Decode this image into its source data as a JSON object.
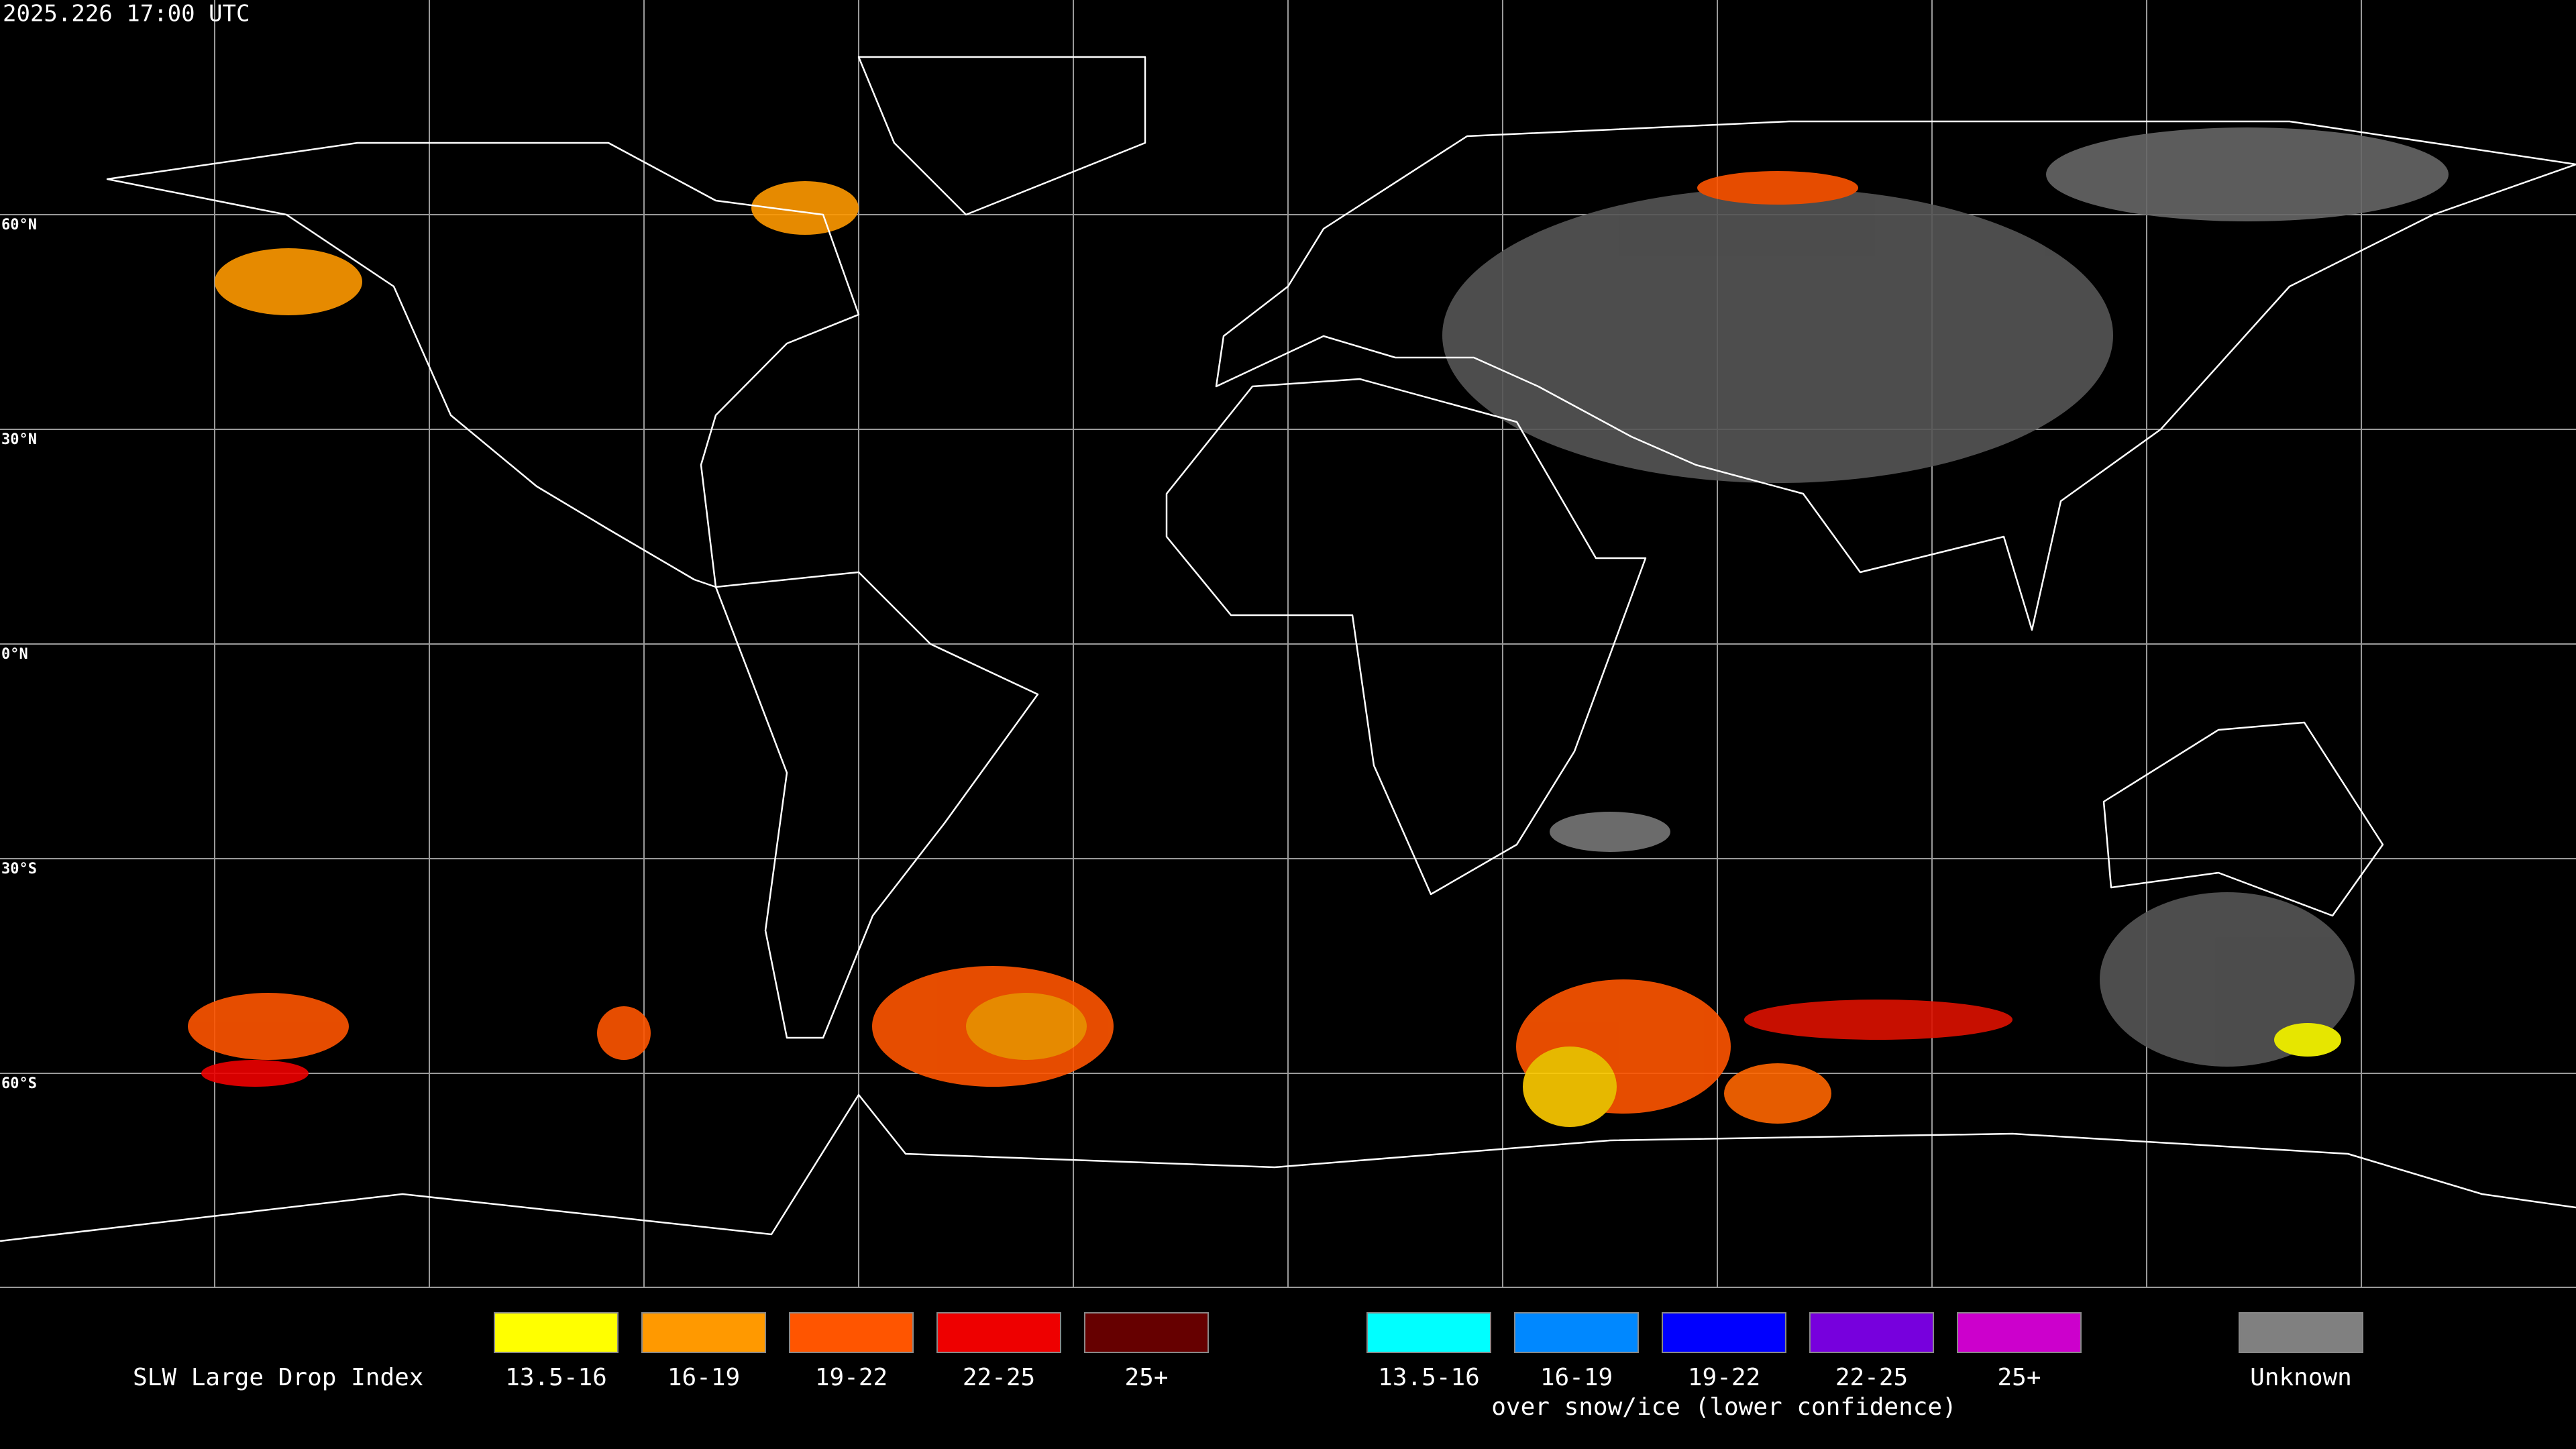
{
  "timestamp": "2025.226 17:00 UTC",
  "map": {
    "latitude_labels": [
      "60°N",
      "30°N",
      "0°N",
      "30°S",
      "60°S"
    ]
  },
  "legend": {
    "title": "SLW Large Drop Index",
    "groups": [
      {
        "items": [
          {
            "label": "13.5-16",
            "color": "#ffff00"
          },
          {
            "label": "16-19",
            "color": "#ff9900"
          },
          {
            "label": "19-22",
            "color": "#ff5500"
          },
          {
            "label": "22-25",
            "color": "#ee0000"
          },
          {
            "label": "25+",
            "color": "#660000"
          }
        ]
      },
      {
        "subtitle": "over snow/ice (lower confidence)",
        "items": [
          {
            "label": "13.5-16",
            "color": "#00ffff"
          },
          {
            "label": "16-19",
            "color": "#0088ff"
          },
          {
            "label": "19-22",
            "color": "#0000ff"
          },
          {
            "label": "22-25",
            "color": "#7700dd"
          },
          {
            "label": "25+",
            "color": "#cc00cc"
          }
        ]
      },
      {
        "items": [
          {
            "label": "Unknown",
            "color": "#808080"
          }
        ]
      }
    ]
  }
}
